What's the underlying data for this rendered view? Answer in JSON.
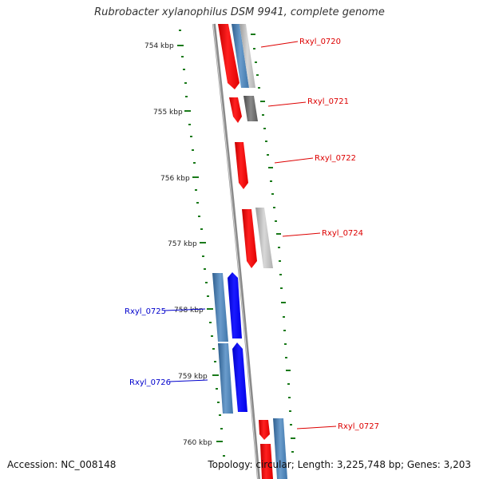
{
  "title": "Rubrobacter xylanophilus DSM 9941, complete genome",
  "accession": "Accession: NC_008148",
  "topology": "Topology: circular; Length: 3,225,748 bp; Genes: 3,203",
  "kbp_labels": [
    "754 kbp",
    "755 kbp",
    "756 kbp",
    "757 kbp",
    "758 kbp",
    "759 kbp",
    "760 kbp"
  ],
  "genes": [
    {
      "name": "Rxyl_0720",
      "strand": "forward",
      "label_color": "#dd0000"
    },
    {
      "name": "Rxyl_0721",
      "strand": "forward",
      "label_color": "#dd0000"
    },
    {
      "name": "Rxyl_0722",
      "strand": "forward",
      "label_color": "#dd0000"
    },
    {
      "name": "Rxyl_0724",
      "strand": "forward",
      "label_color": "#dd0000"
    },
    {
      "name": "Rxyl_0725",
      "strand": "reverse",
      "label_color": "#0000cc"
    },
    {
      "name": "Rxyl_0726",
      "strand": "reverse",
      "label_color": "#0000cc"
    },
    {
      "name": "Rxyl_0727",
      "strand": "forward",
      "label_color": "#dd0000"
    }
  ],
  "colors": {
    "forward_cds": "#ff0000",
    "reverse_cds": "#0000ff",
    "steel_blue": "#4f86b8",
    "gray": "#b5b5b5",
    "dark_gray": "#666666",
    "tick_green": "#1a7a1a",
    "backbone": "#888888"
  }
}
